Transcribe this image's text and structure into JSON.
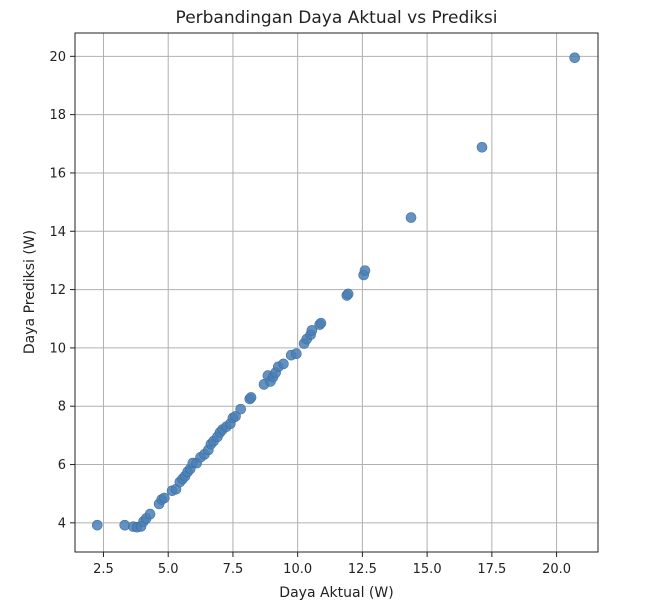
{
  "chart_data": {
    "type": "scatter",
    "title": "Perbandingan Daya Aktual vs Prediksi",
    "xlabel": "Daya Aktual (W)",
    "ylabel": "Daya Prediksi (W)",
    "xlim": [
      1.4,
      21.6
    ],
    "ylim": [
      3.0,
      20.8
    ],
    "xticks": [
      2.5,
      5.0,
      7.5,
      10.0,
      12.5,
      15.0,
      17.5,
      20.0
    ],
    "xtick_labels": [
      "2.5",
      "5.0",
      "7.5",
      "10.0",
      "12.5",
      "15.0",
      "17.5",
      "20.0"
    ],
    "yticks": [
      4,
      6,
      8,
      10,
      12,
      14,
      16,
      18,
      20
    ],
    "ytick_labels": [
      "4",
      "6",
      "8",
      "10",
      "12",
      "14",
      "16",
      "18",
      "20"
    ],
    "grid": true,
    "marker_color": "#4a7fb5",
    "series": [
      {
        "points": [
          [
            2.26,
            3.92
          ],
          [
            3.32,
            3.92
          ],
          [
            3.65,
            3.87
          ],
          [
            3.8,
            3.85
          ],
          [
            3.95,
            3.88
          ],
          [
            4.05,
            4.05
          ],
          [
            4.15,
            4.15
          ],
          [
            4.3,
            4.3
          ],
          [
            4.65,
            4.65
          ],
          [
            4.75,
            4.8
          ],
          [
            4.85,
            4.85
          ],
          [
            5.15,
            5.1
          ],
          [
            5.3,
            5.15
          ],
          [
            5.45,
            5.4
          ],
          [
            5.55,
            5.5
          ],
          [
            5.65,
            5.6
          ],
          [
            5.75,
            5.75
          ],
          [
            5.85,
            5.85
          ],
          [
            5.95,
            6.05
          ],
          [
            6.1,
            6.05
          ],
          [
            6.25,
            6.25
          ],
          [
            6.4,
            6.35
          ],
          [
            6.55,
            6.5
          ],
          [
            6.65,
            6.7
          ],
          [
            6.75,
            6.8
          ],
          [
            6.9,
            6.95
          ],
          [
            7.0,
            7.1
          ],
          [
            7.1,
            7.2
          ],
          [
            7.25,
            7.3
          ],
          [
            7.4,
            7.4
          ],
          [
            7.5,
            7.6
          ],
          [
            7.6,
            7.65
          ],
          [
            7.8,
            7.9
          ],
          [
            8.15,
            8.25
          ],
          [
            8.2,
            8.3
          ],
          [
            8.7,
            8.75
          ],
          [
            8.85,
            9.05
          ],
          [
            8.95,
            8.85
          ],
          [
            9.05,
            9.0
          ],
          [
            9.15,
            9.15
          ],
          [
            9.25,
            9.35
          ],
          [
            9.45,
            9.45
          ],
          [
            9.75,
            9.75
          ],
          [
            9.95,
            9.8
          ],
          [
            10.25,
            10.15
          ],
          [
            10.35,
            10.3
          ],
          [
            10.5,
            10.45
          ],
          [
            10.55,
            10.6
          ],
          [
            10.85,
            10.8
          ],
          [
            10.9,
            10.85
          ],
          [
            11.9,
            11.8
          ],
          [
            11.95,
            11.85
          ],
          [
            12.55,
            12.5
          ],
          [
            12.6,
            12.65
          ],
          [
            14.38,
            14.47
          ],
          [
            17.12,
            16.88
          ],
          [
            20.7,
            19.95
          ]
        ]
      }
    ]
  }
}
